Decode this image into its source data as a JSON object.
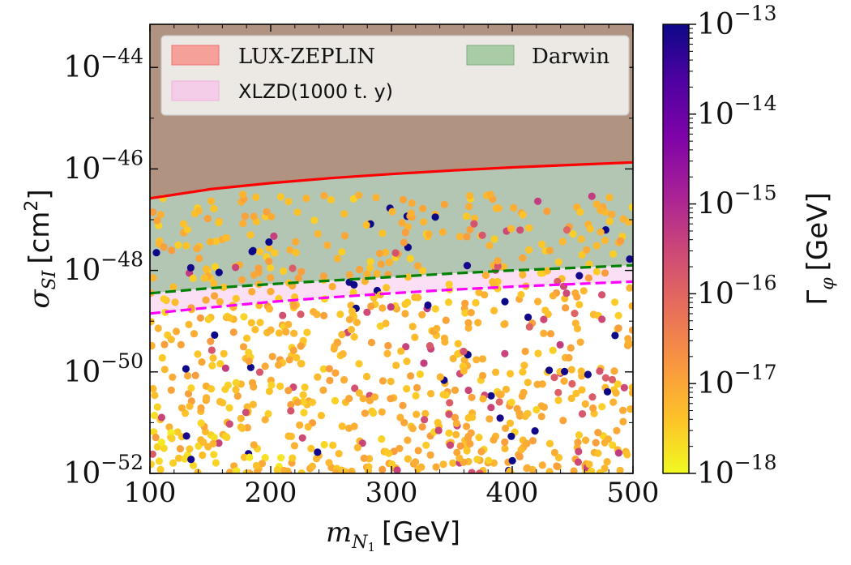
{
  "chart_data": {
    "type": "scatter",
    "title": "",
    "xlabel": {
      "base": "m",
      "sub_main": "N",
      "sub_sub": "1",
      "unit": "[GeV]"
    },
    "ylabel": {
      "base": "σ",
      "sub": "SI",
      "unit_pre": "[cm",
      "unit_sup": "2",
      "unit_post": "]"
    },
    "xscale": "linear",
    "yscale": "log",
    "xlim": [
      100,
      500
    ],
    "ylim_exp": [
      -52,
      -43.15
    ],
    "xticks": [
      100,
      200,
      300,
      400,
      500
    ],
    "xtick_labels": [
      "100",
      "200",
      "300",
      "400",
      "500"
    ],
    "yticks_exp": [
      -52,
      -50,
      -48,
      -46,
      -44
    ],
    "ytick_labels": [
      {
        "base": "10",
        "exp": "−52"
      },
      {
        "base": "10",
        "exp": "−50"
      },
      {
        "base": "10",
        "exp": "−48"
      },
      {
        "base": "10",
        "exp": "−46"
      },
      {
        "base": "10",
        "exp": "−44"
      }
    ],
    "legend": {
      "placement": "top",
      "entries": [
        {
          "label": "LUX-ZEPLIN",
          "color": "#f08080"
        },
        {
          "label": "Darwin",
          "color": "#8fbf8f"
        },
        {
          "label": "XLZD(1000 t. y)",
          "color": "#f2c6e8"
        }
      ]
    },
    "series": [
      {
        "name": "LUX-ZEPLIN",
        "kind": "exclusion-line",
        "color": "#ff0000",
        "style": "solid",
        "fill": "#b09380",
        "x": [
          100,
          150,
          200,
          250,
          300,
          350,
          400,
          450,
          500
        ],
        "log10_y": [
          -46.58,
          -46.4,
          -46.28,
          -46.18,
          -46.1,
          -46.03,
          -45.97,
          -45.92,
          -45.87
        ]
      },
      {
        "name": "Darwin",
        "kind": "projection-line",
        "color": "#008000",
        "style": "dashed",
        "fill": "#b3c6b3",
        "x": [
          100,
          150,
          200,
          250,
          300,
          350,
          400,
          450,
          500
        ],
        "log10_y": [
          -48.45,
          -48.35,
          -48.27,
          -48.2,
          -48.13,
          -48.06,
          -48.0,
          -47.95,
          -47.9
        ]
      },
      {
        "name": "XLZD(1000 t. y)",
        "kind": "projection-line",
        "color": "#ff00ff",
        "style": "dashed",
        "fill": "#fbe0f5",
        "x": [
          100,
          150,
          200,
          250,
          300,
          350,
          400,
          450,
          500
        ],
        "log10_y": [
          -48.85,
          -48.73,
          -48.62,
          -48.53,
          -48.45,
          -48.38,
          -48.32,
          -48.27,
          -48.22
        ]
      }
    ],
    "scatter": {
      "count": 900,
      "x_range": [
        100,
        500
      ],
      "log10_y_range": [
        -52,
        -46.5
      ],
      "color_variable": "log10 Γφ [GeV]",
      "color_range": [
        -18,
        -13
      ],
      "note": "dense scan points, majority at Γφ ≈ 10^-17, denser toward low σ"
    },
    "colorbar": {
      "label": {
        "symbol": "Γ",
        "sub": "φ",
        "unit": "[GeV]"
      },
      "cmap": "plasma",
      "range_exp": [
        -18,
        -13
      ],
      "ticks_exp": [
        -18,
        -17,
        -16,
        -15,
        -14,
        -13
      ],
      "tick_labels": [
        {
          "base": "10",
          "exp": "−18"
        },
        {
          "base": "10",
          "exp": "−17"
        },
        {
          "base": "10",
          "exp": "−16"
        },
        {
          "base": "10",
          "exp": "−15"
        },
        {
          "base": "10",
          "exp": "−14"
        },
        {
          "base": "10",
          "exp": "−13"
        }
      ]
    }
  }
}
